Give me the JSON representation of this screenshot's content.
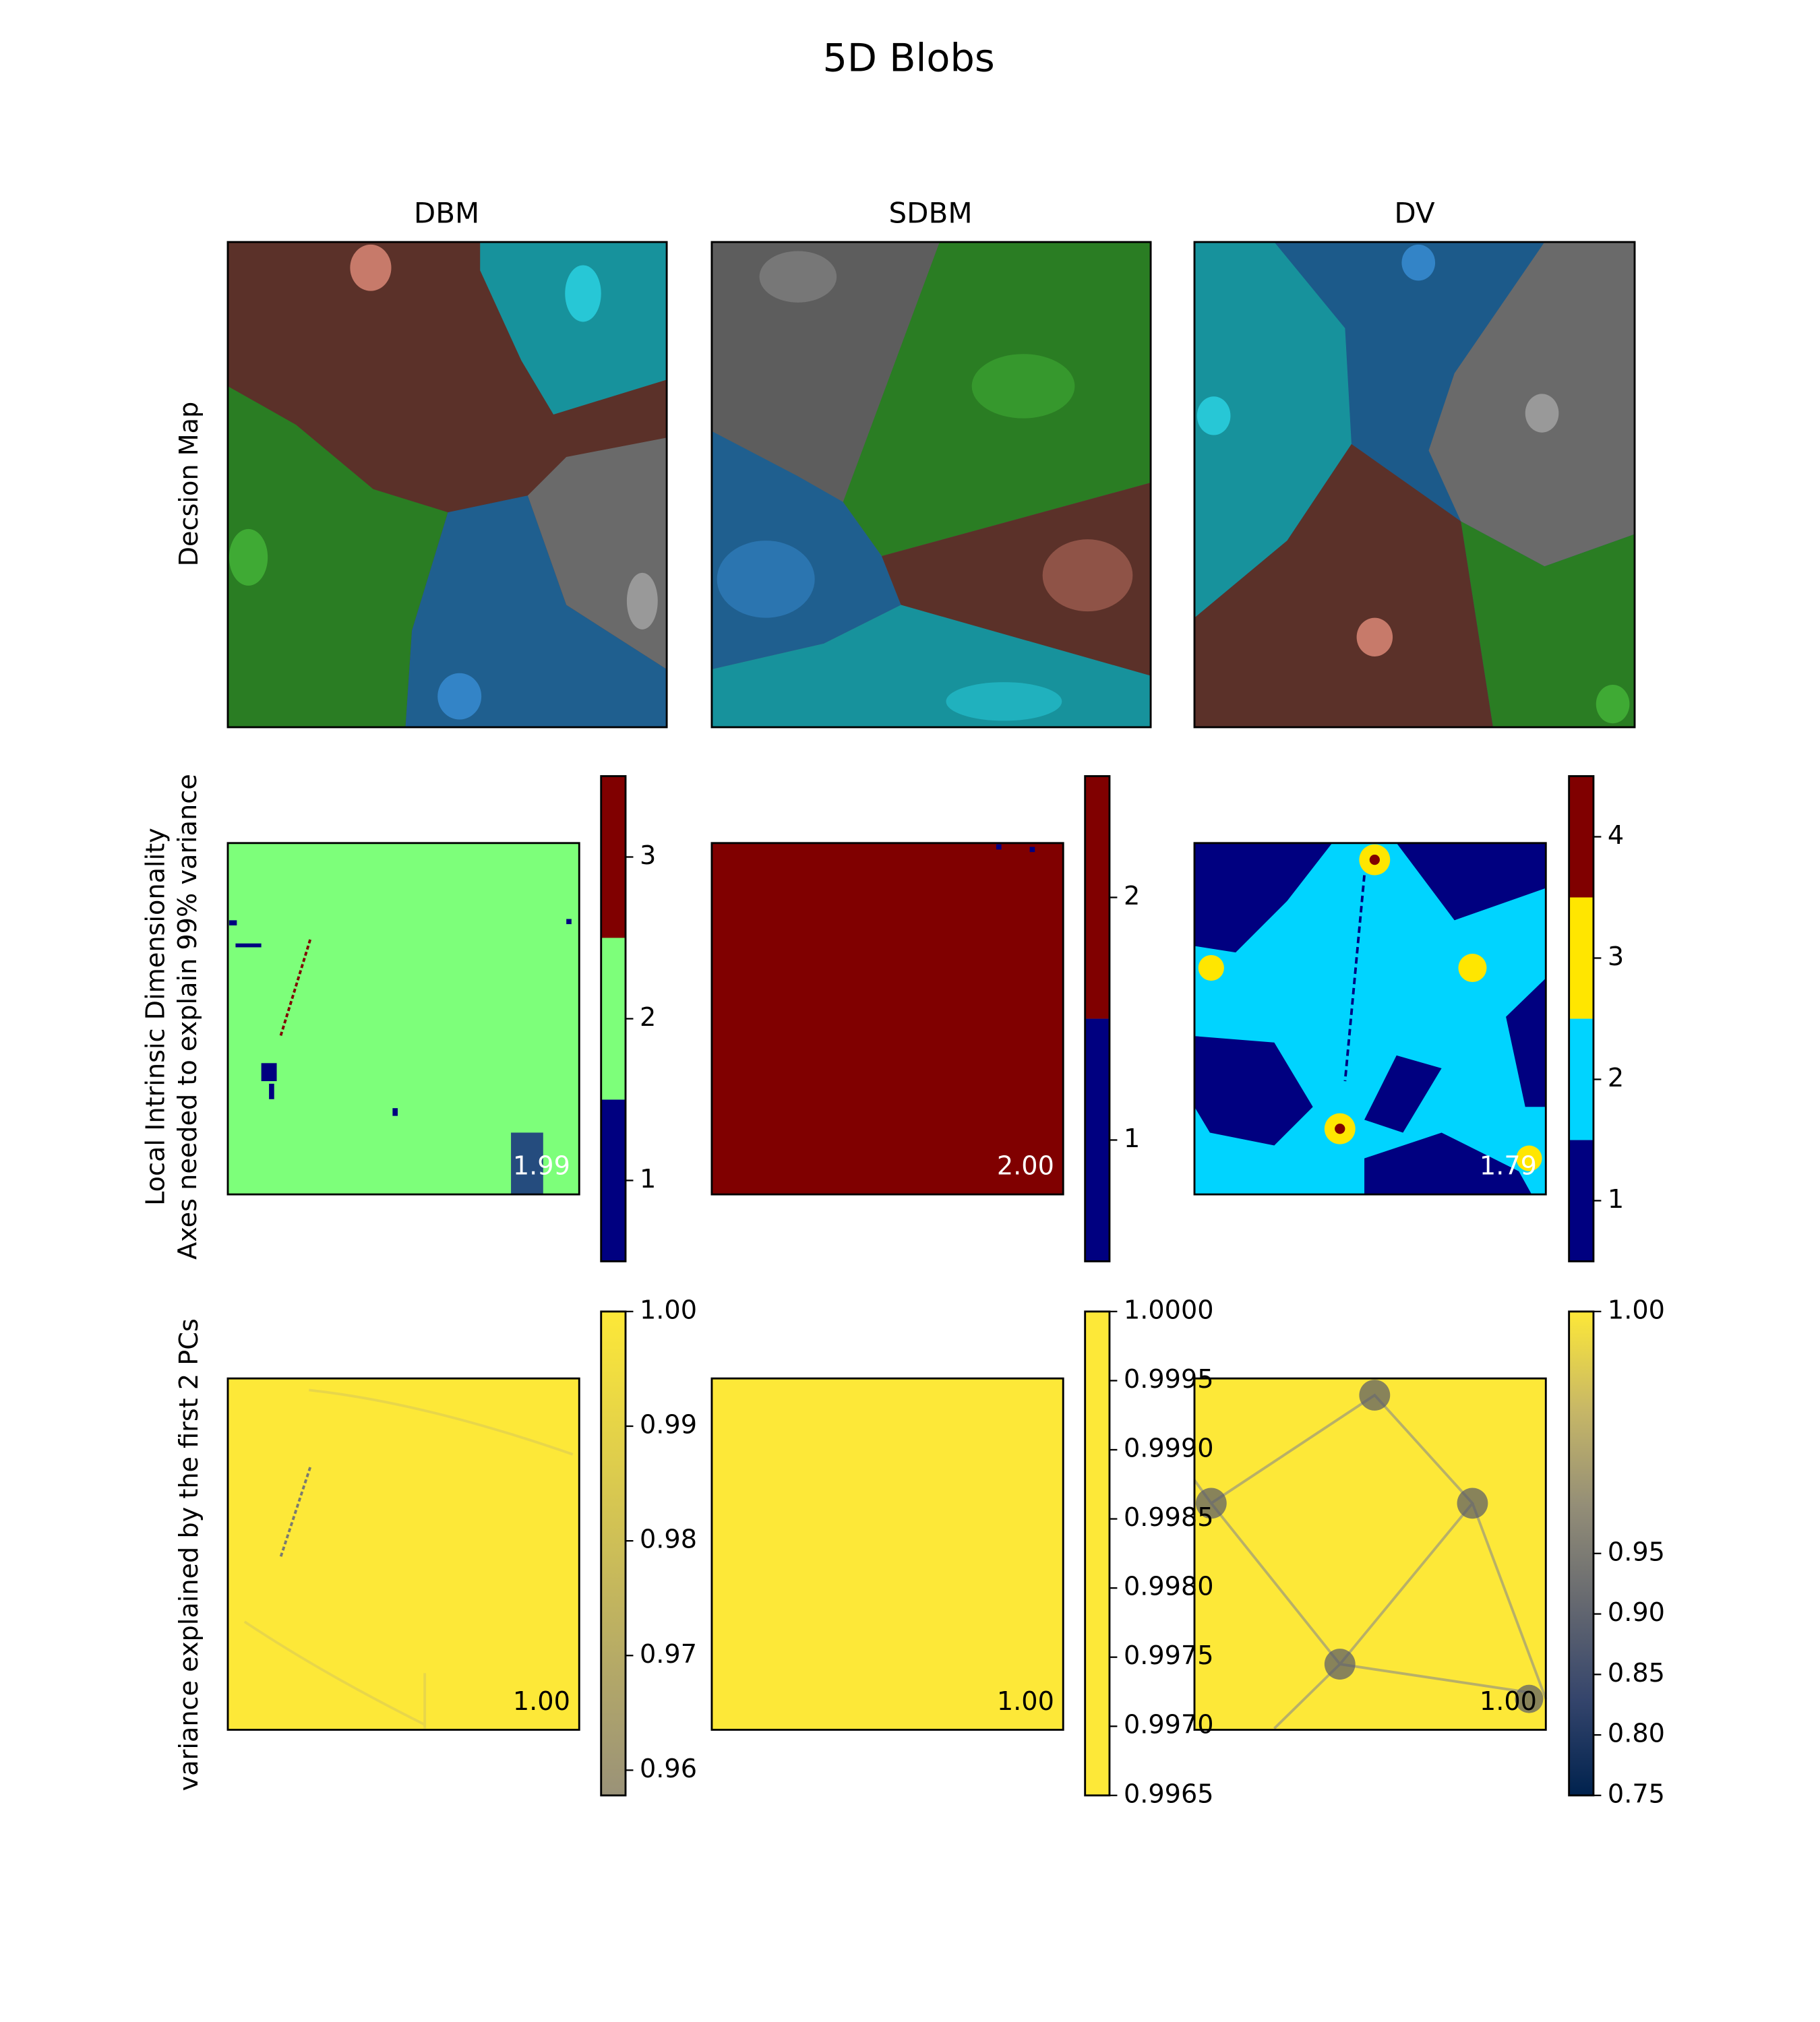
{
  "title": "5D Blobs",
  "columns": [
    "DBM",
    "SDBM",
    "DV"
  ],
  "row_labels": [
    "Decsion Map",
    [
      "Local Intrinsic Dimensionality",
      "Axes needed to explain 99% variance"
    ],
    "variance explained by the first 2 PCs"
  ],
  "chart_data": [
    {
      "type": "discrete",
      "annotation": "1.99",
      "ylim": [
        0.5,
        3.5
      ],
      "yticks": [
        1,
        2,
        3
      ],
      "colors": [
        "#000080",
        "#7dff7a",
        "#800000"
      ]
    },
    {
      "type": "discrete",
      "annotation": "2.00",
      "ylim": [
        0.5,
        2.5
      ],
      "yticks": [
        1,
        2
      ],
      "colors": [
        "#000080",
        "#800000"
      ]
    },
    {
      "type": "discrete",
      "annotation": "1.79",
      "ylim": [
        0.5,
        4.5
      ],
      "yticks": [
        1,
        2,
        3,
        4
      ],
      "colors": [
        "#000080",
        "#00d4ff",
        "#ffe600",
        "#800000"
      ]
    },
    {
      "type": "continuous",
      "annotation": "1.00",
      "ylim": [
        0.9578,
        1
      ],
      "yticks": [
        0.96,
        0.97,
        0.98,
        0.99,
        {
          "value": 1,
          "label": "1.00"
        }
      ],
      "colors": [
        "#9a9278",
        "#fde838"
      ]
    },
    {
      "type": "continuous",
      "annotation": "1.00",
      "ylim": [
        0.9965,
        1
      ],
      "yticks": [
        0.9965,
        {
          "value": 0.997,
          "label": "0.9970"
        },
        0.9975,
        {
          "value": 0.998,
          "label": "0.9980"
        },
        0.9985,
        {
          "value": 0.999,
          "label": "0.9990"
        },
        0.9995,
        {
          "value": 1,
          "label": "1.0000"
        }
      ],
      "colors": [
        "#fde838",
        "#fde838"
      ]
    },
    {
      "type": "continuous",
      "annotation": "1.00",
      "ylim": [
        0.75,
        1
      ],
      "norm": "two-slope",
      "vcenter": 0.95,
      "yticks": [
        0.75,
        {
          "value": 0.8,
          "label": "0.80"
        },
        0.85,
        {
          "value": 0.9,
          "label": "0.90"
        },
        0.95,
        {
          "value": 1,
          "label": "1.00"
        }
      ],
      "colors": [
        "#00224e",
        "#35456c",
        "#666970",
        "#948e77",
        "#c8b866",
        "#fde838"
      ]
    }
  ]
}
